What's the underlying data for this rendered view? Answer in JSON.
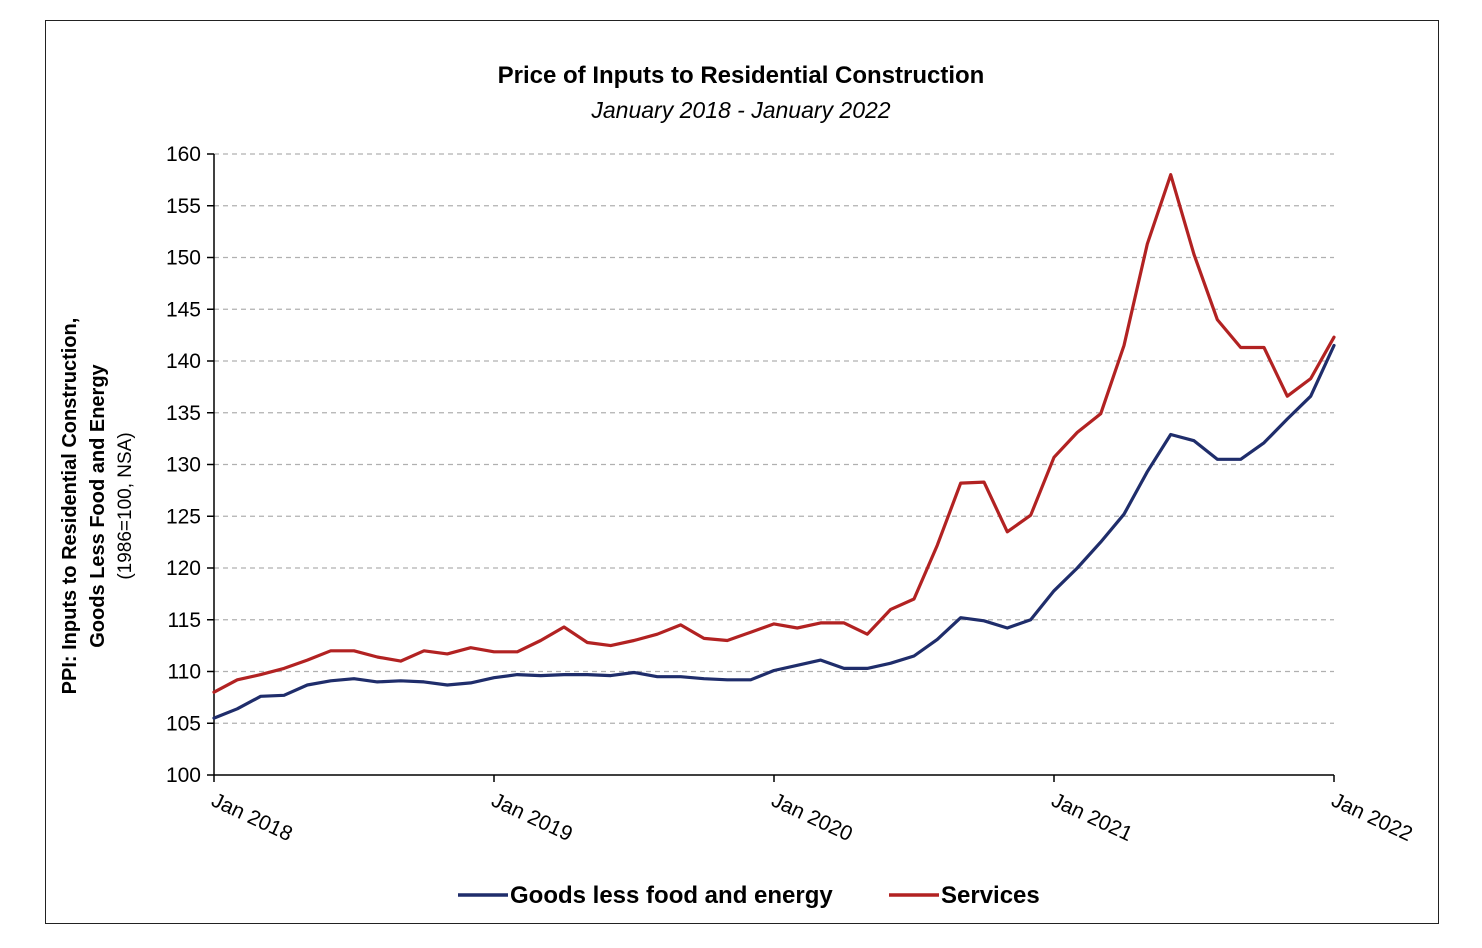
{
  "chart_data": {
    "type": "line",
    "title": "Price of Inputs to Residential Construction",
    "subtitle": "January 2018 - January 2022",
    "ylabel": "PPI: Inputs to Residential Construction, Goods Less Food and Energy",
    "ylabel_line1": "PPI: Inputs to Residential Construction,",
    "ylabel_line2": "Goods Less Food and Energy",
    "ylabel_line3": "(1986=100, NSA)",
    "xlabel": "",
    "ylim": [
      100,
      160
    ],
    "yticks": [
      "100",
      "105",
      "110",
      "115",
      "120",
      "125",
      "130",
      "135",
      "140",
      "145",
      "150",
      "155",
      "160"
    ],
    "xticks": [
      "Jan 2018",
      "Jan 2019",
      "Jan 2020",
      "Jan 2021",
      "Jan 2022"
    ],
    "grid": "horizontal-dashed",
    "legend_position": "bottom",
    "series": [
      {
        "name": "Goods less food and energy",
        "color": "#1f2d6b",
        "values": [
          105.5,
          106.4,
          107.6,
          107.7,
          108.7,
          109.1,
          109.3,
          109.0,
          109.1,
          109.0,
          108.7,
          108.9,
          109.4,
          109.7,
          109.6,
          109.7,
          109.7,
          109.6,
          109.9,
          109.5,
          109.5,
          109.3,
          109.2,
          109.2,
          110.1,
          110.6,
          111.1,
          110.3,
          110.3,
          110.8,
          111.5,
          113.1,
          115.2,
          114.9,
          114.2,
          115.0,
          117.8,
          120.0,
          122.5,
          125.2,
          129.3,
          132.9,
          132.3,
          130.5,
          130.5,
          132.1,
          134.4,
          136.6,
          141.5
        ]
      },
      {
        "name": "Services",
        "color": "#b22222",
        "values": [
          108.0,
          109.2,
          109.7,
          110.3,
          111.1,
          112.0,
          112.0,
          111.4,
          111.0,
          112.0,
          111.7,
          112.3,
          111.9,
          111.9,
          113.0,
          114.3,
          112.8,
          112.5,
          113.0,
          113.6,
          114.5,
          113.2,
          113.0,
          113.8,
          114.6,
          114.2,
          114.7,
          114.7,
          113.6,
          116.0,
          117.0,
          122.2,
          128.2,
          128.3,
          123.5,
          125.1,
          130.7,
          133.1,
          134.9,
          141.5,
          151.3,
          158.0,
          150.3,
          144.0,
          141.3,
          141.3,
          136.6,
          138.3,
          142.3
        ]
      }
    ]
  }
}
